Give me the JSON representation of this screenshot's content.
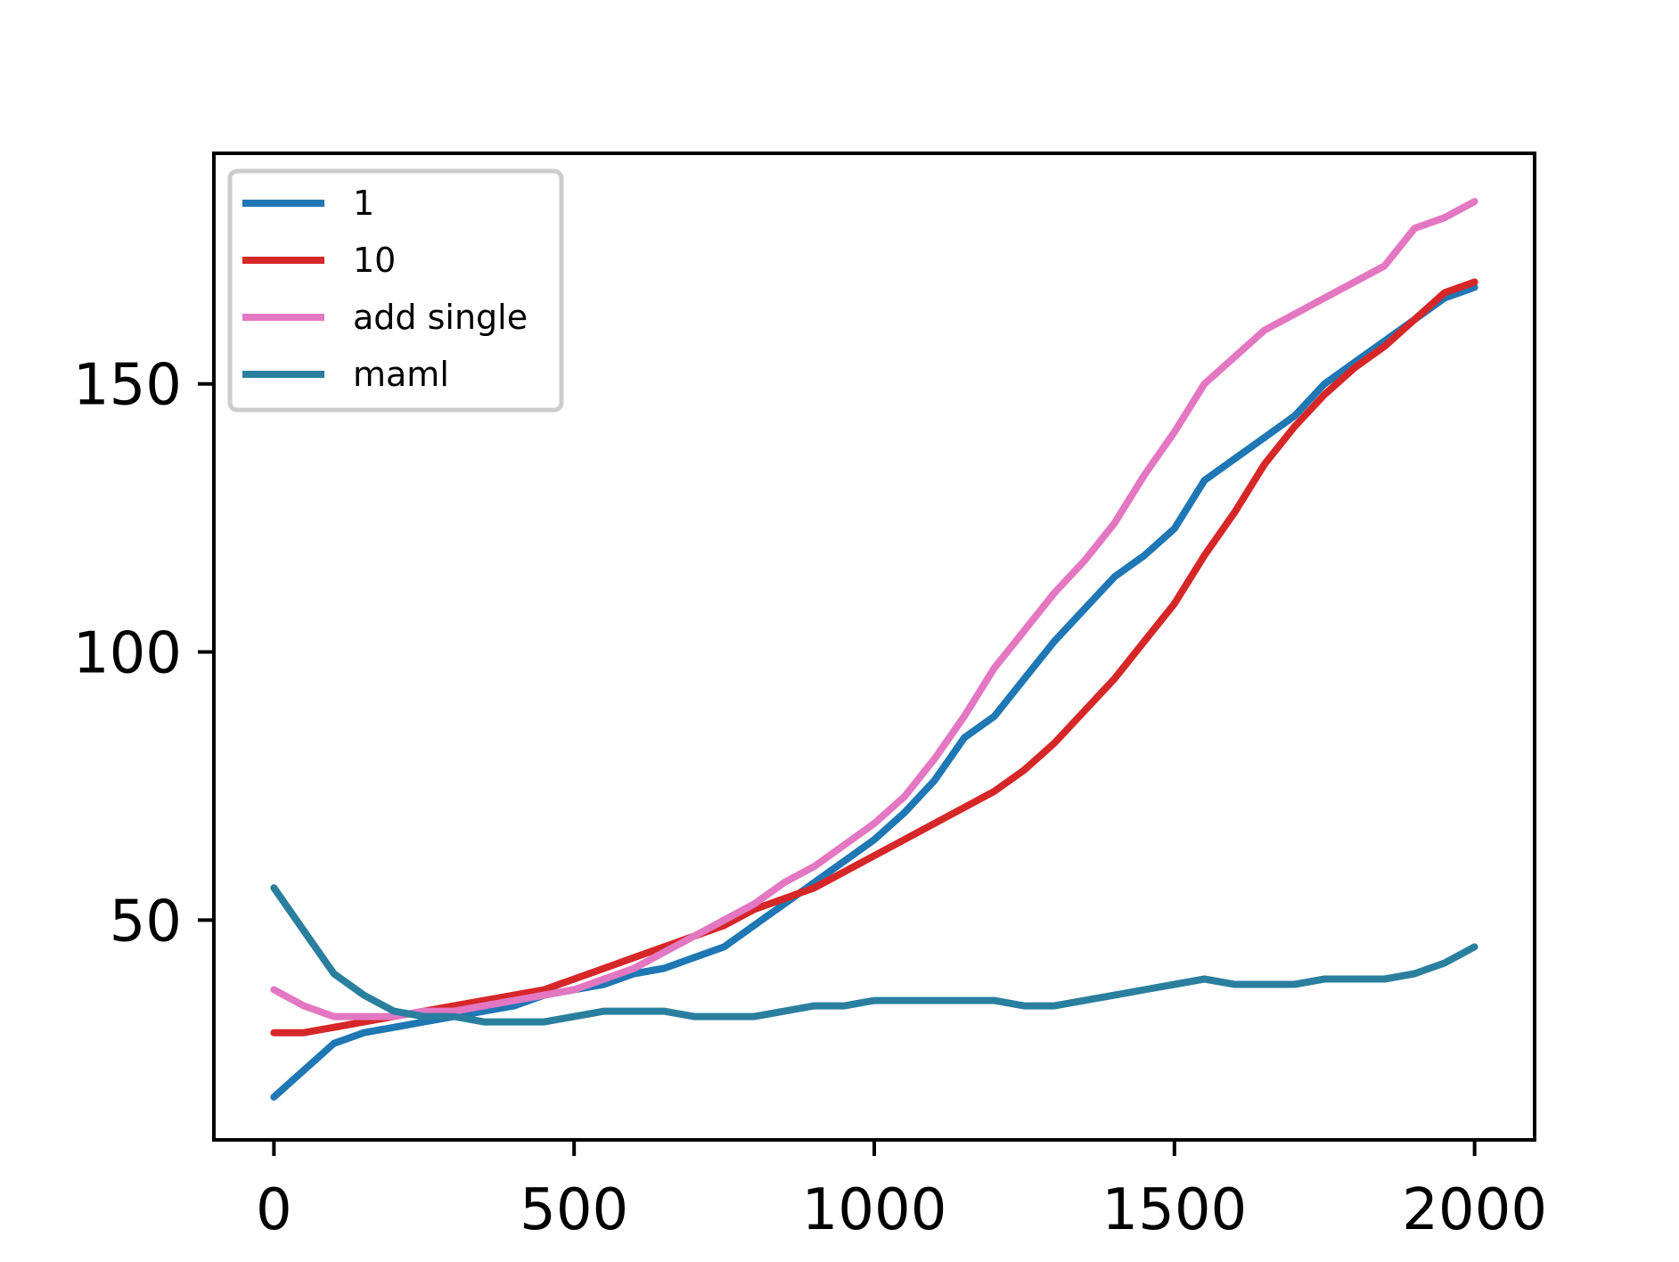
{
  "chart_data": {
    "type": "line",
    "title": "",
    "xlabel": "",
    "ylabel": "",
    "xlim": [
      -100,
      2100
    ],
    "ylim": [
      9,
      193
    ],
    "xticks": [
      0,
      500,
      1000,
      1500,
      2000
    ],
    "yticks": [
      50,
      100,
      150
    ],
    "grid": false,
    "legend_position": "top-left",
    "series": [
      {
        "name": "1",
        "color": "#1f77b4",
        "x": [
          0,
          50,
          100,
          150,
          200,
          250,
          300,
          350,
          400,
          450,
          500,
          550,
          600,
          650,
          700,
          750,
          800,
          850,
          900,
          950,
          1000,
          1050,
          1100,
          1150,
          1200,
          1250,
          1300,
          1350,
          1400,
          1450,
          1500,
          1550,
          1600,
          1650,
          1700,
          1750,
          1800,
          1850,
          1900,
          1950,
          2000
        ],
        "y": [
          17,
          22,
          27,
          29,
          30,
          31,
          32,
          33,
          34,
          36,
          37,
          38,
          40,
          41,
          43,
          45,
          49,
          53,
          57,
          61,
          65,
          70,
          76,
          84,
          88,
          95,
          102,
          108,
          114,
          118,
          123,
          132,
          136,
          140,
          144,
          150,
          154,
          158,
          162,
          166,
          168
        ]
      },
      {
        "name": "10",
        "color": "#d62728",
        "x": [
          0,
          50,
          100,
          150,
          200,
          250,
          300,
          350,
          400,
          450,
          500,
          550,
          600,
          650,
          700,
          750,
          800,
          850,
          900,
          950,
          1000,
          1050,
          1100,
          1150,
          1200,
          1250,
          1300,
          1350,
          1400,
          1450,
          1500,
          1550,
          1600,
          1650,
          1700,
          1750,
          1800,
          1850,
          1900,
          1950,
          2000
        ],
        "y": [
          29,
          29,
          30,
          31,
          32,
          33,
          34,
          35,
          36,
          37,
          39,
          41,
          43,
          45,
          47,
          49,
          52,
          54,
          56,
          59,
          62,
          65,
          68,
          71,
          74,
          78,
          83,
          89,
          95,
          102,
          109,
          118,
          126,
          135,
          142,
          148,
          153,
          157,
          162,
          167,
          169
        ]
      },
      {
        "name": "add single",
        "color": "#e377c2",
        "x": [
          0,
          50,
          100,
          150,
          200,
          250,
          300,
          350,
          400,
          450,
          500,
          550,
          600,
          650,
          700,
          750,
          800,
          850,
          900,
          950,
          1000,
          1050,
          1100,
          1150,
          1200,
          1250,
          1300,
          1350,
          1400,
          1450,
          1500,
          1550,
          1600,
          1650,
          1700,
          1750,
          1800,
          1850,
          1900,
          1950,
          2000
        ],
        "y": [
          37,
          34,
          32,
          32,
          32,
          33,
          33,
          34,
          35,
          36,
          37,
          39,
          41,
          44,
          47,
          50,
          53,
          57,
          60,
          64,
          68,
          73,
          80,
          88,
          97,
          104,
          111,
          117,
          124,
          133,
          141,
          150,
          155,
          160,
          163,
          166,
          169,
          172,
          179,
          181,
          184
        ]
      },
      {
        "name": "maml",
        "color": "#2b7f9e",
        "x": [
          0,
          50,
          100,
          150,
          200,
          250,
          300,
          350,
          400,
          450,
          500,
          550,
          600,
          650,
          700,
          750,
          800,
          850,
          900,
          950,
          1000,
          1050,
          1100,
          1150,
          1200,
          1250,
          1300,
          1350,
          1400,
          1450,
          1500,
          1550,
          1600,
          1650,
          1700,
          1750,
          1800,
          1850,
          1900,
          1950,
          2000
        ],
        "y": [
          56,
          48,
          40,
          36,
          33,
          32,
          32,
          31,
          31,
          31,
          32,
          33,
          33,
          33,
          32,
          32,
          32,
          33,
          34,
          34,
          35,
          35,
          35,
          35,
          35,
          34,
          34,
          35,
          36,
          37,
          38,
          39,
          38,
          38,
          38,
          39,
          39,
          39,
          40,
          42,
          45
        ]
      }
    ]
  }
}
